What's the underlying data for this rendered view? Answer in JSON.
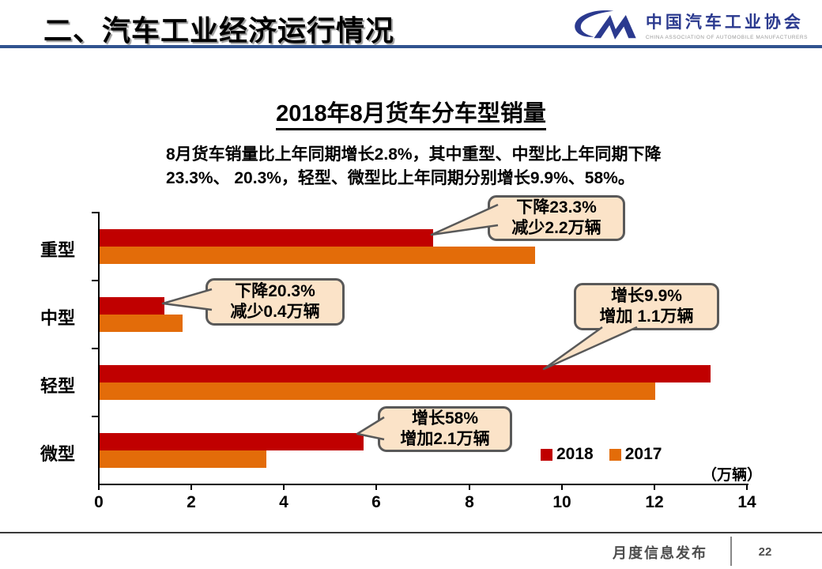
{
  "header": {
    "section_title": "二、汽车工业经济运行情况",
    "logo": {
      "monogram": "CM",
      "org_name_zh": "中国汽车工业协会",
      "org_name_en": "CHINA ASSOCIATION OF AUTOMOBILE MANUFACTURERS"
    },
    "accent_color": "#31538F"
  },
  "slide": {
    "title": "2018年8月货车分车型销量",
    "summary_line1": "8月货车销量比上年同期增长2.8%，其中重型、中型比上年同期下降",
    "summary_line2": "23.3%、 20.3%，轻型、微型比上年同期分别增长9.9%、58%。"
  },
  "chart_data": {
    "type": "bar",
    "orientation": "horizontal",
    "title": "2018年8月货车分车型销量",
    "categories": [
      "重型",
      "中型",
      "轻型",
      "微型"
    ],
    "series": [
      {
        "name": "2018",
        "color": "#C00000",
        "values": [
          7.2,
          1.4,
          13.2,
          5.7
        ]
      },
      {
        "name": "2017",
        "color": "#E36C09",
        "values": [
          9.4,
          1.8,
          12.0,
          3.6
        ]
      }
    ],
    "xlim": [
      0,
      14
    ],
    "xticks": [
      0,
      2,
      4,
      6,
      8,
      10,
      12,
      14
    ],
    "unit_label": "（万辆）",
    "grid": false,
    "legend_position": "bottom-right",
    "annotations": [
      {
        "target": "重型-2018",
        "line1": "下降23.3%",
        "line2": "减少2.2万辆"
      },
      {
        "target": "中型-2018",
        "line1": "下降20.3%",
        "line2": "减少0.4万辆"
      },
      {
        "target": "轻型-2018",
        "line1": "增长9.9%",
        "line2": "增加 1.1万辆"
      },
      {
        "target": "微型-2018",
        "line1": "增长58%",
        "line2": "增加2.1万辆"
      }
    ]
  },
  "footer": {
    "label": "月度信息发布",
    "page_number": "22"
  }
}
